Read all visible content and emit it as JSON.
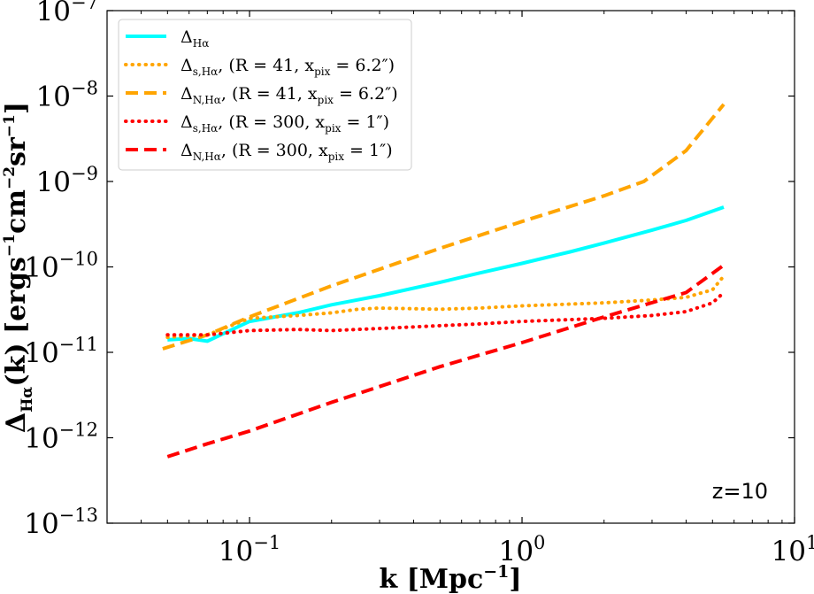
{
  "chart_data": {
    "type": "line",
    "xscale": "log",
    "yscale": "log",
    "xlim": [
      0.03,
      10
    ],
    "ylim": [
      1e-13,
      1e-07
    ],
    "xlabel": "k [Mpc⁻¹]",
    "ylabel": "Δ_Hα(k) [ergs⁻¹cm⁻²sr⁻¹]",
    "x_ticks": [
      {
        "value": 0.1,
        "base": "10",
        "exp": "−1"
      },
      {
        "value": 1,
        "base": "10",
        "exp": "0"
      },
      {
        "value": 10,
        "base": "10",
        "exp": "1"
      }
    ],
    "y_ticks": [
      {
        "value": 1e-13,
        "base": "10",
        "exp": "−13"
      },
      {
        "value": 1e-12,
        "base": "10",
        "exp": "−12"
      },
      {
        "value": 1e-11,
        "base": "10",
        "exp": "−11"
      },
      {
        "value": 1e-10,
        "base": "10",
        "exp": "−10"
      },
      {
        "value": 1e-09,
        "base": "10",
        "exp": "−9"
      },
      {
        "value": 1e-08,
        "base": "10",
        "exp": "−8"
      },
      {
        "value": 1e-07,
        "base": "10",
        "exp": "−7"
      }
    ],
    "annotation": "z=10",
    "legend_position": "upper-left",
    "series": [
      {
        "name": "ΔHα",
        "label_main": "Δ",
        "label_sub": "Hα",
        "label_rest": "",
        "color": "#00ffff",
        "style": "solid",
        "x": [
          0.05,
          0.06,
          0.07,
          0.08,
          0.1,
          0.15,
          0.2,
          0.3,
          0.5,
          0.7,
          1.0,
          1.5,
          2.0,
          3.0,
          4.0,
          5.5
        ],
        "y": [
          1.4e-11,
          1.45e-11,
          1.35e-11,
          1.65e-11,
          2.3e-11,
          2.9e-11,
          3.6e-11,
          4.6e-11,
          6.6e-11,
          8.5e-11,
          1.1e-10,
          1.5e-10,
          1.9e-10,
          2.7e-10,
          3.5e-10,
          5e-10
        ]
      },
      {
        "name": "Δs,Hα, (R = 41, xpix = 6.2″)",
        "label_main": "Δ",
        "label_sub": "s,Hα",
        "label_rest": ", (R = 41, x",
        "label_sub2": "pix",
        "label_end": " = 6.2″)",
        "color": "#ffa500",
        "style": "dotted",
        "x": [
          0.05,
          0.07,
          0.1,
          0.15,
          0.2,
          0.25,
          0.3,
          0.5,
          0.7,
          1.0,
          2.0,
          3.0,
          4.0,
          5.0,
          5.5
        ],
        "y": [
          1.5e-11,
          1.6e-11,
          2.5e-11,
          2.7e-11,
          2.9e-11,
          3.2e-11,
          3.3e-11,
          3.2e-11,
          3.3e-11,
          3.5e-11,
          3.8e-11,
          4.1e-11,
          4.4e-11,
          5.4e-11,
          7.8e-11
        ]
      },
      {
        "name": "ΔN,Hα, (R = 41, xpix = 6.2″)",
        "label_main": "Δ",
        "label_sub": "N,Hα",
        "label_rest": ", (R = 41, x",
        "label_sub2": "pix",
        "label_end": " = 6.2″)",
        "color": "#ffa500",
        "style": "dashed",
        "x": [
          0.048,
          0.07,
          0.1,
          0.2,
          0.5,
          1.0,
          2.0,
          2.8,
          4.0,
          5.5
        ],
        "y": [
          1.1e-11,
          1.6e-11,
          2.6e-11,
          6e-11,
          1.65e-10,
          3.4e-10,
          6.8e-10,
          1e-09,
          2.3e-09,
          8e-09
        ]
      },
      {
        "name": "Δs,Hα, (R = 300, xpix = 1″)",
        "label_main": "Δ",
        "label_sub": "s,Hα",
        "label_rest": ", (R = 300, x",
        "label_sub2": "pix",
        "label_end": " = 1″)",
        "color": "#ff0000",
        "style": "dotted",
        "x": [
          0.05,
          0.07,
          0.1,
          0.15,
          0.2,
          0.3,
          0.5,
          0.7,
          1.0,
          2.0,
          3.0,
          4.0,
          5.0,
          5.5
        ],
        "y": [
          1.6e-11,
          1.6e-11,
          1.8e-11,
          1.85e-11,
          1.8e-11,
          1.9e-11,
          2.05e-11,
          2.15e-11,
          2.3e-11,
          2.5e-11,
          2.7e-11,
          3e-11,
          3.8e-11,
          5e-11
        ]
      },
      {
        "name": "ΔN,Hα, (R = 300, xpix = 1″)",
        "label_main": "Δ",
        "label_sub": "N,Hα",
        "label_rest": ", (R = 300, x",
        "label_sub2": "pix",
        "label_end": " = 1″)",
        "color": "#ff0000",
        "style": "dashed",
        "x": [
          0.05,
          0.07,
          0.1,
          0.2,
          0.5,
          1.0,
          2.0,
          4.0,
          5.5
        ],
        "y": [
          6e-13,
          8.5e-13,
          1.2e-12,
          2.6e-12,
          6.8e-12,
          1.3e-11,
          2.6e-11,
          5e-11,
          1.05e-10
        ]
      }
    ]
  }
}
